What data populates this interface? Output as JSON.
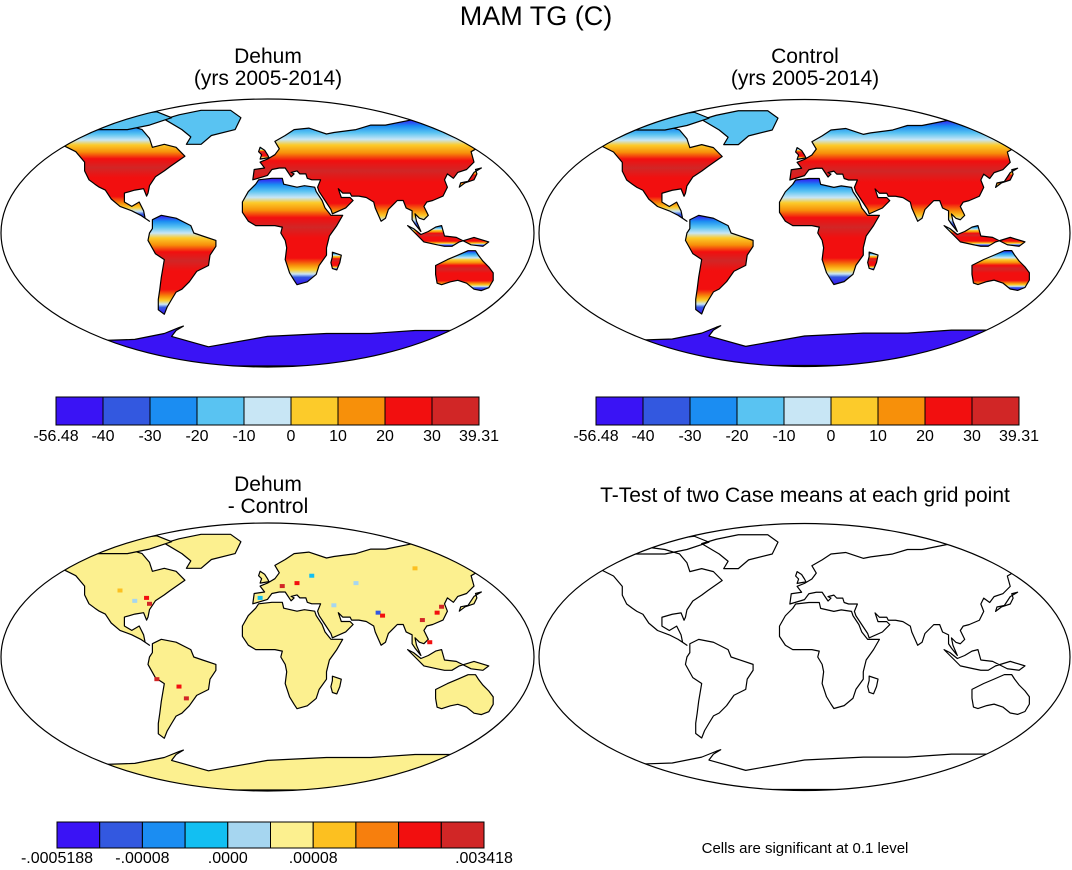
{
  "figure": {
    "title": "MAM TG (C)"
  },
  "panels": {
    "dehum": {
      "title_line1": "Dehum",
      "title_line2": "(yrs 2005-2014)",
      "colorbar": {
        "colors": [
          "#3a13f5",
          "#3358e0",
          "#1b8df2",
          "#59c3f2",
          "#c8e6f5",
          "#fccb2a",
          "#f7900a",
          "#f20f0f",
          "#d12626"
        ],
        "labels": [
          "-56.48",
          "-40",
          "-30",
          "-20",
          "-10",
          "0",
          "10",
          "20",
          "30",
          "39.31"
        ]
      }
    },
    "control": {
      "title_line1": "Control",
      "title_line2": "(yrs 2005-2014)",
      "colorbar": {
        "colors": [
          "#3a13f5",
          "#3358e0",
          "#1b8df2",
          "#59c3f2",
          "#c8e6f5",
          "#fccb2a",
          "#f7900a",
          "#f20f0f",
          "#d12626"
        ],
        "labels": [
          "-56.48",
          "-40",
          "-30",
          "-20",
          "-10",
          "0",
          "10",
          "20",
          "30",
          "39.31"
        ]
      }
    },
    "difference": {
      "title_line1": "Dehum",
      "title_line2": "- Control",
      "colorbar": {
        "colors": [
          "#3a13f5",
          "#3358e0",
          "#1b8df2",
          "#12bff2",
          "#a6d6f0",
          "#fcf08f",
          "#fcc020",
          "#f77f0d",
          "#f20f0f",
          "#d12626"
        ],
        "labels": [
          "-.0005188",
          "-.00008",
          ".0000",
          ".00008",
          ".003418"
        ]
      }
    },
    "ttest": {
      "title": "T-Test of two Case means at each grid point",
      "note": "Cells are significant at 0.1 level"
    }
  }
}
